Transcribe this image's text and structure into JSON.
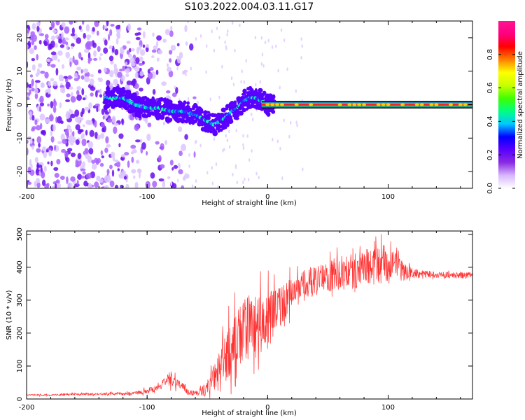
{
  "title": "S103.2022.004.03.11.G17",
  "chart_data": [
    {
      "type": "heatmap",
      "xlabel": "Height of straight line (km)",
      "ylabel": "Frequency (Hz)",
      "xlim": [
        -200,
        170
      ],
      "ylim": [
        -25,
        25
      ],
      "xticks": [
        -200,
        -100,
        0,
        100
      ],
      "yticks": [
        -20,
        -10,
        0,
        10,
        20
      ],
      "colorbar": {
        "label": "Normalized spectral amplitude",
        "range": [
          0.0,
          1.0
        ],
        "ticks": [
          "0.0",
          "0.2",
          "0.4",
          "0.6",
          "0.8"
        ],
        "colors": [
          "#ffffff",
          "#d8b8ff",
          "#8a2be2",
          "#5a00ff",
          "#0000ff",
          "#00c8ff",
          "#00ff80",
          "#40ff00",
          "#c8ff00",
          "#ffff00",
          "#ff8000",
          "#ff0000",
          "#ff0080",
          "#ff1493"
        ]
      },
      "ridge": {
        "x": [
          -130,
          -120,
          -110,
          -100,
          -90,
          -80,
          -70,
          -60,
          -50,
          -45,
          -40,
          -35,
          -30,
          -25,
          -20,
          -15,
          -10,
          -5,
          0,
          5,
          170
        ],
        "y": [
          2,
          2,
          0,
          -1,
          -1,
          -2,
          -2,
          -3,
          -5,
          -6,
          -5,
          -4,
          -2,
          -1,
          1,
          2,
          2,
          1,
          0,
          0,
          0
        ]
      },
      "scatter_region": {
        "x": [
          -200,
          -120
        ],
        "y": [
          -25,
          25
        ]
      }
    },
    {
      "type": "line",
      "xlabel": "Height of straight line (km)",
      "ylabel": "SNR (10 * v/v)",
      "xlim": [
        -200,
        170
      ],
      "ylim": [
        0,
        510
      ],
      "xticks": [
        -200,
        -100,
        0,
        100
      ],
      "yticks": [
        0,
        100,
        200,
        300,
        400,
        500
      ],
      "line_color": "#ff3030",
      "series": [
        {
          "x": [
            -200,
            -180,
            -160,
            -140,
            -120,
            -110,
            -100,
            -95,
            -90,
            -85,
            -80,
            -75,
            -70,
            -65,
            -60,
            -55,
            -50,
            -45,
            -40,
            -35,
            -30,
            -25,
            -20,
            -15,
            -10,
            -5,
            0,
            5,
            10,
            15,
            20,
            25,
            30,
            35,
            40,
            45,
            50,
            55,
            60,
            65,
            70,
            75,
            80,
            85,
            90,
            95,
            100,
            105,
            110,
            115,
            120,
            125,
            130,
            140,
            150,
            160,
            170
          ],
          "y": [
            12,
            12,
            15,
            15,
            16,
            18,
            25,
            30,
            40,
            50,
            65,
            50,
            35,
            20,
            18,
            22,
            35,
            60,
            90,
            125,
            160,
            180,
            200,
            215,
            225,
            235,
            245,
            260,
            280,
            300,
            320,
            330,
            345,
            352,
            358,
            365,
            372,
            378,
            382,
            385,
            388,
            392,
            395,
            400,
            405,
            410,
            408,
            400,
            392,
            385,
            382,
            380,
            380,
            378,
            376,
            375,
            376
          ],
          "noise": [
            3,
            3,
            4,
            4,
            5,
            6,
            10,
            14,
            16,
            20,
            28,
            22,
            16,
            10,
            10,
            16,
            30,
            50,
            70,
            90,
            110,
            120,
            130,
            130,
            125,
            115,
            105,
            95,
            80,
            70,
            60,
            58,
            56,
            55,
            55,
            58,
            60,
            62,
            64,
            66,
            68,
            70,
            72,
            75,
            78,
            75,
            70,
            60,
            45,
            30,
            20,
            16,
            14,
            12,
            12,
            12,
            12
          ]
        }
      ]
    }
  ]
}
